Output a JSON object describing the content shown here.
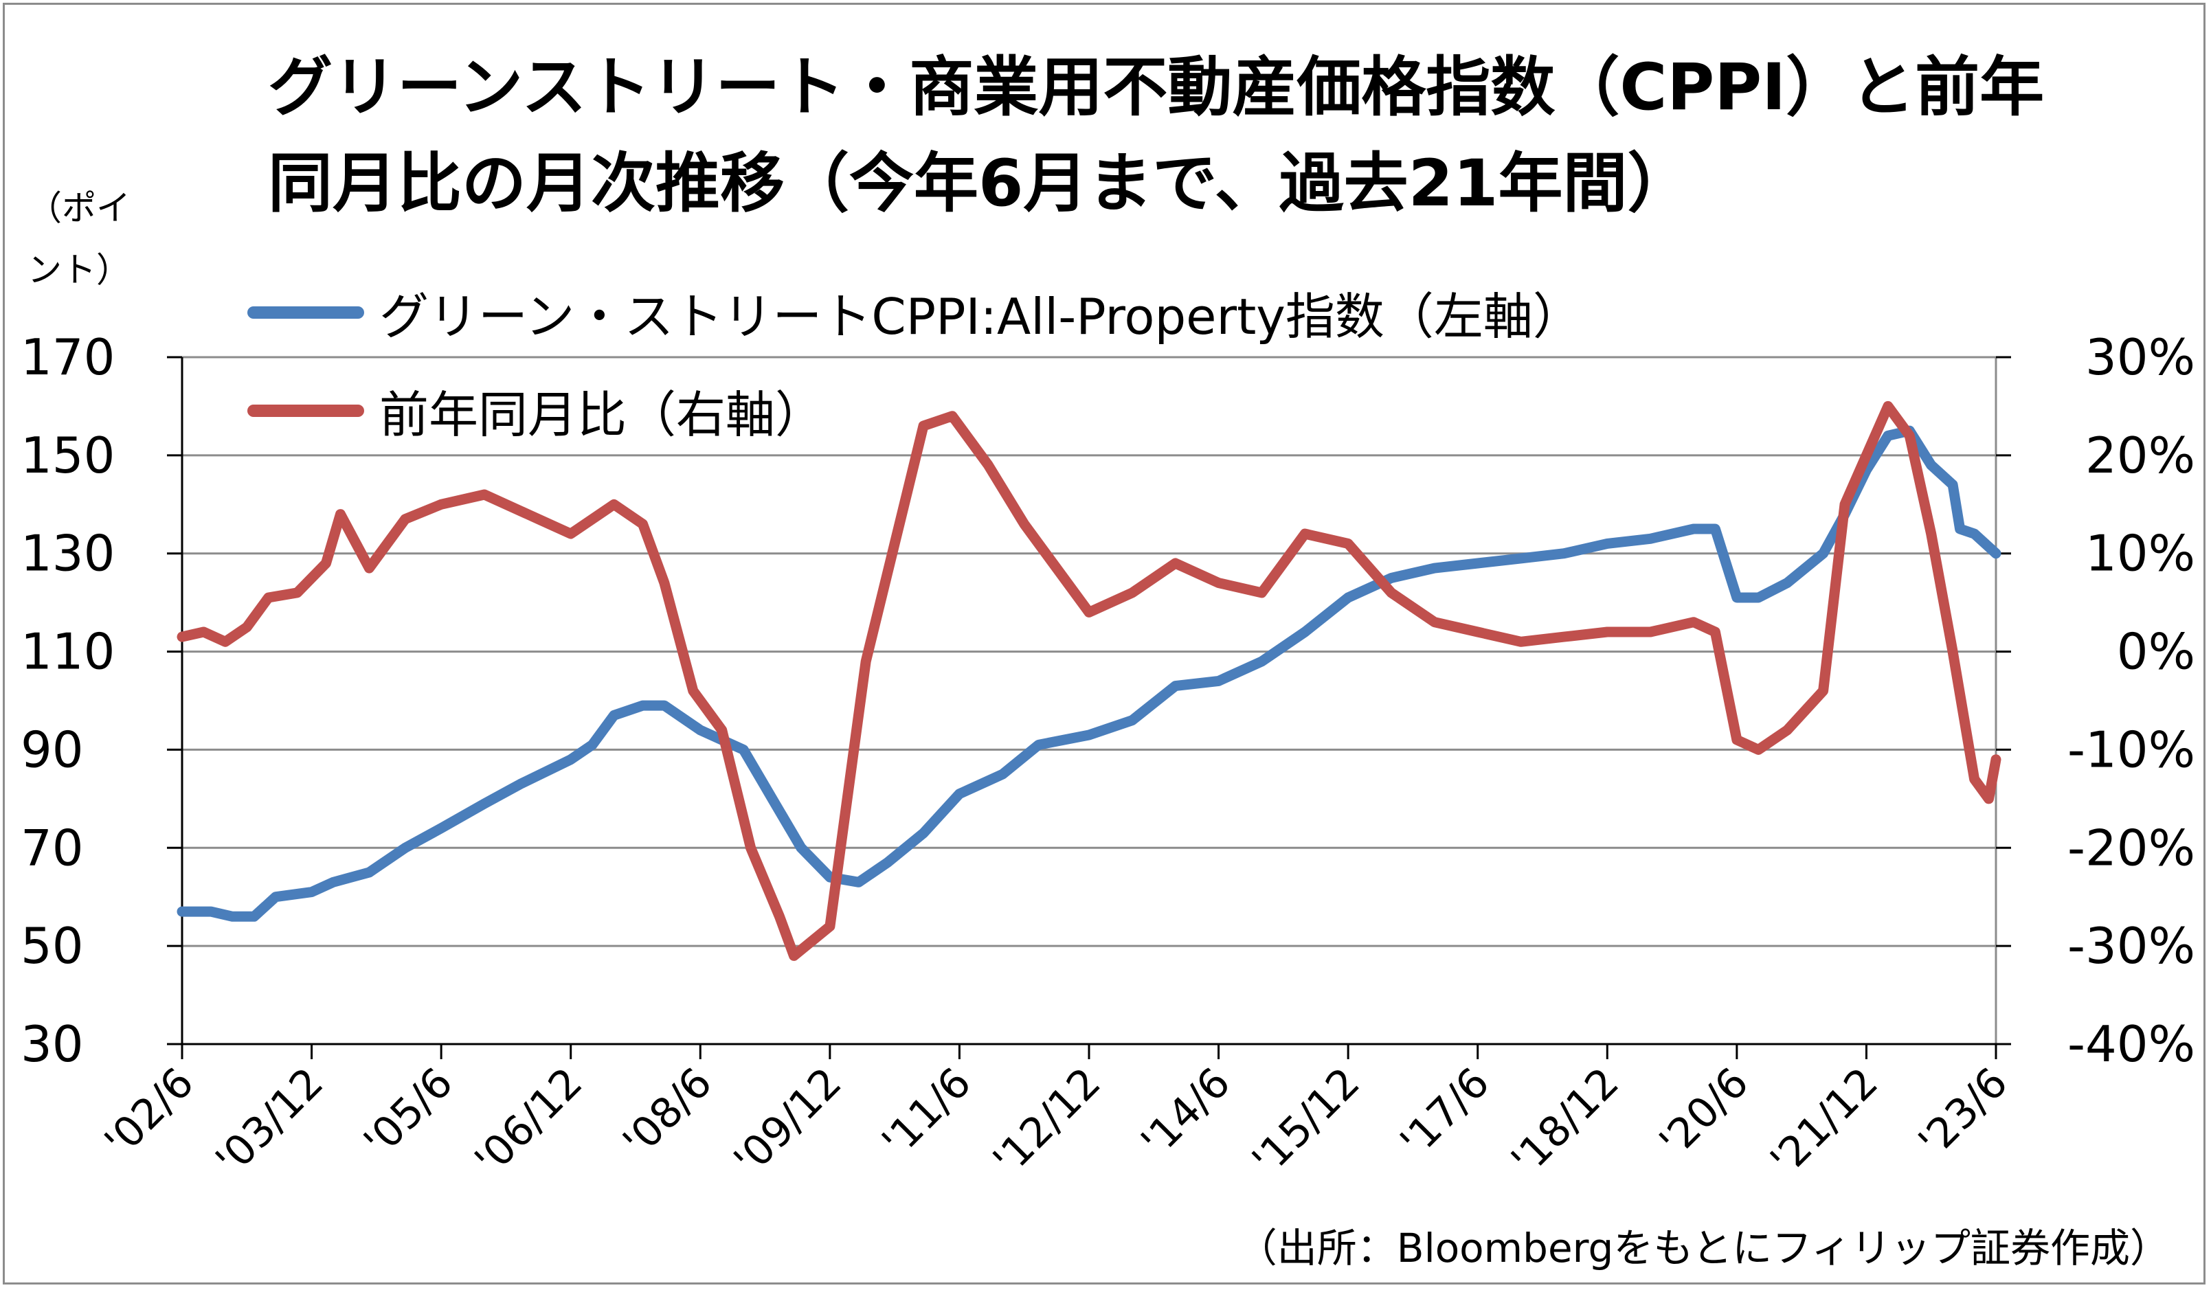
{
  "chart_data": {
    "type": "line",
    "title_line1": "グリーンストリート・商業用不動産価格指数（CPPI）と前年",
    "title_line2": "同月比の月次推移（今年6月まで、過去21年間）",
    "ylabel_left": "（ポイ\nント）",
    "source": "（出所：Bloombergをもとにフィリップ証券作成）",
    "legend_position": "top-left",
    "grid": true,
    "x_tick_labels": [
      "'02/6",
      "'03/12",
      "'05/6",
      "'06/12",
      "'08/6",
      "'09/12",
      "'11/6",
      "'12/12",
      "'14/6",
      "'15/12",
      "'17/6",
      "'18/12",
      "'20/6",
      "'21/12",
      "'23/6"
    ],
    "x_range": [
      "2002-06",
      "2023-06"
    ],
    "y_left": {
      "ticks": [
        "170",
        "150",
        "130",
        "110",
        "90",
        "70",
        "50",
        "30"
      ],
      "range": [
        30,
        170
      ]
    },
    "y_right": {
      "ticks": [
        "30%",
        "20%",
        "10%",
        "0%",
        "-10%",
        "-20%",
        "-30%",
        "-40%"
      ],
      "range": [
        -40,
        30
      ]
    },
    "series": [
      {
        "name": "グリーン・ストリートCPPI:All-Property指数（左軸）",
        "axis": "left",
        "color": "#4a7ebb",
        "points": [
          [
            "2002-06",
            57
          ],
          [
            "2002-10",
            57
          ],
          [
            "2003-01",
            56
          ],
          [
            "2003-04",
            56
          ],
          [
            "2003-07",
            60
          ],
          [
            "2003-12",
            61
          ],
          [
            "2004-03",
            63
          ],
          [
            "2004-08",
            65
          ],
          [
            "2005-01",
            70
          ],
          [
            "2005-06",
            74
          ],
          [
            "2005-12",
            79
          ],
          [
            "2006-05",
            83
          ],
          [
            "2006-12",
            88
          ],
          [
            "2007-03",
            91
          ],
          [
            "2007-06",
            97
          ],
          [
            "2007-10",
            99
          ],
          [
            "2008-01",
            99
          ],
          [
            "2008-06",
            94
          ],
          [
            "2008-12",
            90
          ],
          [
            "2009-04",
            80
          ],
          [
            "2009-08",
            70
          ],
          [
            "2009-12",
            64
          ],
          [
            "2010-04",
            63
          ],
          [
            "2010-08",
            67
          ],
          [
            "2011-01",
            73
          ],
          [
            "2011-06",
            81
          ],
          [
            "2011-12",
            85
          ],
          [
            "2012-05",
            91
          ],
          [
            "2012-12",
            93
          ],
          [
            "2013-06",
            96
          ],
          [
            "2013-12",
            103
          ],
          [
            "2014-06",
            104
          ],
          [
            "2014-12",
            108
          ],
          [
            "2015-06",
            114
          ],
          [
            "2015-12",
            121
          ],
          [
            "2016-06",
            125
          ],
          [
            "2016-12",
            127
          ],
          [
            "2017-06",
            128
          ],
          [
            "2017-12",
            129
          ],
          [
            "2018-06",
            130
          ],
          [
            "2018-12",
            132
          ],
          [
            "2019-06",
            133
          ],
          [
            "2019-12",
            135
          ],
          [
            "2020-03",
            135
          ],
          [
            "2020-06",
            121
          ],
          [
            "2020-09",
            121
          ],
          [
            "2021-01",
            124
          ],
          [
            "2021-06",
            130
          ],
          [
            "2021-09",
            138
          ],
          [
            "2021-12",
            147
          ],
          [
            "2022-03",
            154
          ],
          [
            "2022-06",
            155
          ],
          [
            "2022-09",
            148
          ],
          [
            "2022-12",
            144
          ],
          [
            "2023-01",
            135
          ],
          [
            "2023-03",
            134
          ],
          [
            "2023-06",
            130
          ]
        ]
      },
      {
        "name": "前年同月比（右軸）",
        "axis": "right",
        "color": "#c0504d",
        "points": [
          [
            "2002-06",
            1.5
          ],
          [
            "2002-09",
            2
          ],
          [
            "2002-12",
            1
          ],
          [
            "2003-03",
            2.5
          ],
          [
            "2003-06",
            5.5
          ],
          [
            "2003-10",
            6
          ],
          [
            "2004-02",
            9
          ],
          [
            "2004-04",
            14
          ],
          [
            "2004-08",
            8.5
          ],
          [
            "2005-01",
            13.5
          ],
          [
            "2005-06",
            15
          ],
          [
            "2005-12",
            16
          ],
          [
            "2006-06",
            14
          ],
          [
            "2006-12",
            12
          ],
          [
            "2007-06",
            15
          ],
          [
            "2007-10",
            13
          ],
          [
            "2008-01",
            7
          ],
          [
            "2008-05",
            -4
          ],
          [
            "2008-09",
            -8
          ],
          [
            "2009-01",
            -20
          ],
          [
            "2009-05",
            -27
          ],
          [
            "2009-07",
            -31
          ],
          [
            "2009-12",
            -28
          ],
          [
            "2010-05",
            -1
          ],
          [
            "2010-10",
            14
          ],
          [
            "2011-01",
            23
          ],
          [
            "2011-05",
            24
          ],
          [
            "2011-10",
            19
          ],
          [
            "2012-03",
            13
          ],
          [
            "2012-08",
            8
          ],
          [
            "2012-12",
            4
          ],
          [
            "2013-06",
            6
          ],
          [
            "2013-12",
            9
          ],
          [
            "2014-06",
            7
          ],
          [
            "2014-12",
            6
          ],
          [
            "2015-06",
            12
          ],
          [
            "2015-12",
            11
          ],
          [
            "2016-06",
            6
          ],
          [
            "2016-12",
            3
          ],
          [
            "2017-06",
            2
          ],
          [
            "2017-12",
            1
          ],
          [
            "2018-06",
            1.5
          ],
          [
            "2018-12",
            2
          ],
          [
            "2019-06",
            2
          ],
          [
            "2019-12",
            3
          ],
          [
            "2020-03",
            2
          ],
          [
            "2020-06",
            -9
          ],
          [
            "2020-09",
            -10
          ],
          [
            "2021-01",
            -8
          ],
          [
            "2021-06",
            -4
          ],
          [
            "2021-09",
            15
          ],
          [
            "2021-12",
            20
          ],
          [
            "2022-03",
            25
          ],
          [
            "2022-06",
            22
          ],
          [
            "2022-09",
            12
          ],
          [
            "2022-12",
            0
          ],
          [
            "2023-03",
            -13
          ],
          [
            "2023-05",
            -15
          ],
          [
            "2023-06",
            -11
          ]
        ]
      }
    ]
  }
}
